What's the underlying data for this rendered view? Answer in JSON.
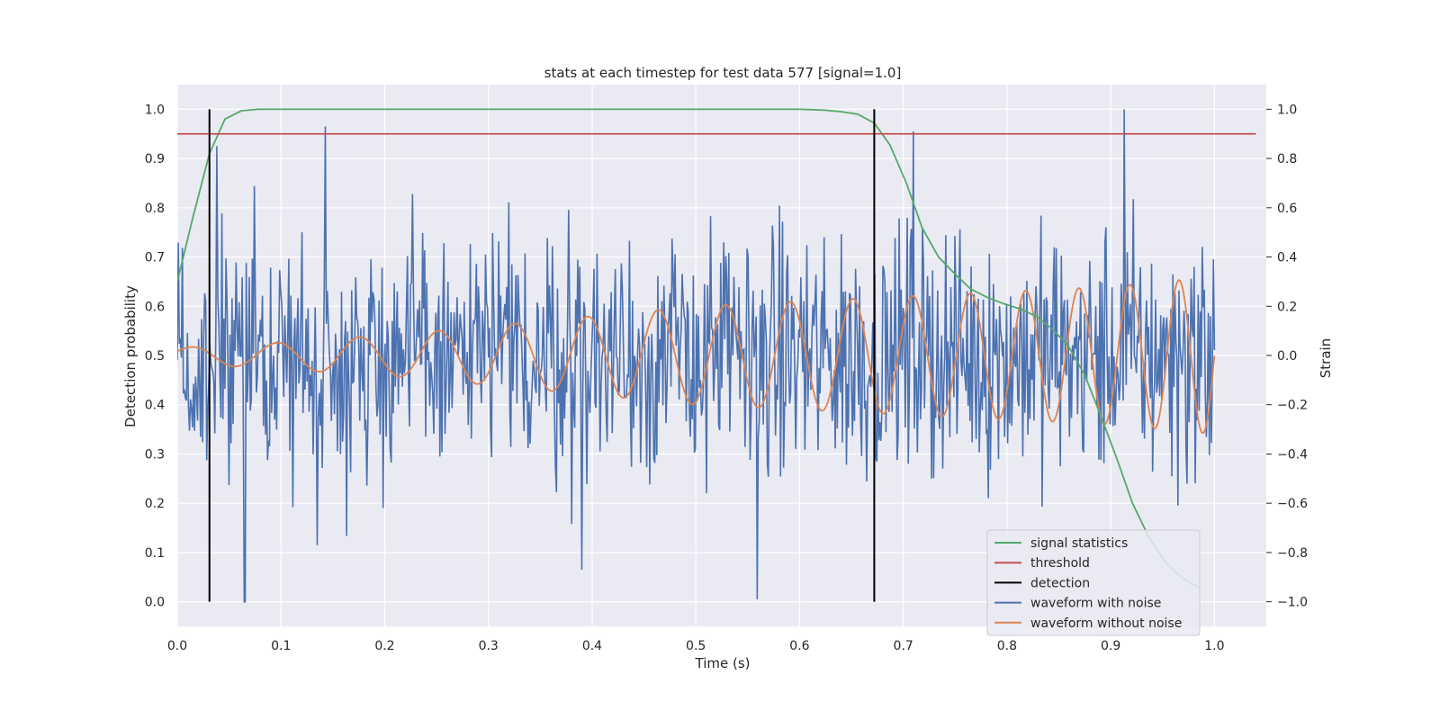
{
  "chart_data": {
    "type": "line",
    "title": "stats at each timestep for test data 577 [signal=1.0]",
    "xlabel": "Time (s)",
    "ylabel": "Detection probability",
    "y2label": "Strain",
    "xlim": [
      0.0,
      1.05
    ],
    "ylim": [
      -0.05,
      1.05
    ],
    "y2lim": [
      -1.1,
      1.1
    ],
    "grid": true,
    "legend_position": "lower-right",
    "x_ticks": [
      "0.0",
      "0.1",
      "0.2",
      "0.3",
      "0.4",
      "0.5",
      "0.6",
      "0.7",
      "0.8",
      "0.9",
      "1.0"
    ],
    "y_ticks": [
      "0.0",
      "0.1",
      "0.2",
      "0.3",
      "0.4",
      "0.5",
      "0.6",
      "0.7",
      "0.8",
      "0.9",
      "1.0"
    ],
    "y2_ticks": [
      "−1.0",
      "−0.8",
      "−0.6",
      "−0.4",
      "−0.2",
      "0.0",
      "0.2",
      "0.4",
      "0.6",
      "0.8",
      "1.0"
    ],
    "colors": {
      "signal_statistics": "#55a868",
      "threshold": "#c44e52",
      "detection": "#000000",
      "waveform_with_noise": "#4c72b0",
      "waveform_without_noise": "#dd8452",
      "plot_background": "#eaeaf2",
      "grid": "#ffffff"
    },
    "series": [
      {
        "name": "signal statistics",
        "axis": "left",
        "x": [
          0.0,
          0.015,
          0.031,
          0.046,
          0.062,
          0.078,
          0.1,
          0.2,
          0.3,
          0.4,
          0.5,
          0.6,
          0.625,
          0.64,
          0.656,
          0.672,
          0.687,
          0.703,
          0.718,
          0.734,
          0.75,
          0.765,
          0.781,
          0.797,
          0.812,
          0.828,
          0.843,
          0.859,
          0.875,
          0.89,
          0.906,
          0.921,
          0.937,
          0.953,
          0.968,
          0.984
        ],
        "y": [
          0.65,
          0.78,
          0.91,
          0.98,
          0.997,
          1.0,
          1.0,
          1.0,
          1.0,
          1.0,
          1.0,
          1.0,
          0.998,
          0.995,
          0.99,
          0.972,
          0.928,
          0.85,
          0.76,
          0.7,
          0.665,
          0.635,
          0.618,
          0.605,
          0.595,
          0.58,
          0.555,
          0.52,
          0.46,
          0.38,
          0.29,
          0.2,
          0.13,
          0.08,
          0.05,
          0.03
        ]
      },
      {
        "name": "threshold",
        "axis": "left",
        "x": [
          0.0,
          1.04
        ],
        "y": [
          0.95,
          0.95
        ]
      },
      {
        "name": "detection",
        "axis": "left",
        "x": [
          0.031,
          0.672
        ],
        "y": [
          0.0,
          1.0
        ]
      },
      {
        "name": "waveform with noise",
        "axis": "right",
        "x_range": [
          0.0,
          1.0
        ],
        "points": 1024,
        "amplitude_range": [
          -1.0,
          1.0
        ],
        "sample_peaks": [
          {
            "x": 0.143,
            "y": 0.93
          },
          {
            "x": 0.038,
            "y": 0.85
          },
          {
            "x": 0.065,
            "y": -1.0
          },
          {
            "x": 0.135,
            "y": -0.77
          },
          {
            "x": 0.39,
            "y": -0.87
          },
          {
            "x": 0.559,
            "y": -0.99
          },
          {
            "x": 0.913,
            "y": 1.0
          },
          {
            "x": 0.71,
            "y": 0.91
          }
        ]
      },
      {
        "name": "waveform without noise",
        "axis": "right",
        "x": [
          0.0,
          0.03,
          0.06,
          0.09,
          0.12,
          0.15,
          0.2,
          0.25,
          0.3,
          0.35,
          0.4,
          0.45,
          0.5,
          0.55,
          0.6,
          0.65,
          0.7,
          0.75,
          0.8,
          0.85,
          0.9,
          0.95,
          1.0
        ],
        "y_peak_envelope": [
          0.03,
          0.04,
          0.045,
          0.05,
          0.06,
          0.07,
          0.08,
          0.1,
          0.12,
          0.14,
          0.16,
          0.18,
          0.2,
          0.21,
          0.22,
          0.23,
          0.24,
          0.25,
          0.26,
          0.27,
          0.28,
          0.3,
          0.32
        ],
        "chirp_start_period": 0.085,
        "chirp_end_period": 0.045
      }
    ]
  }
}
